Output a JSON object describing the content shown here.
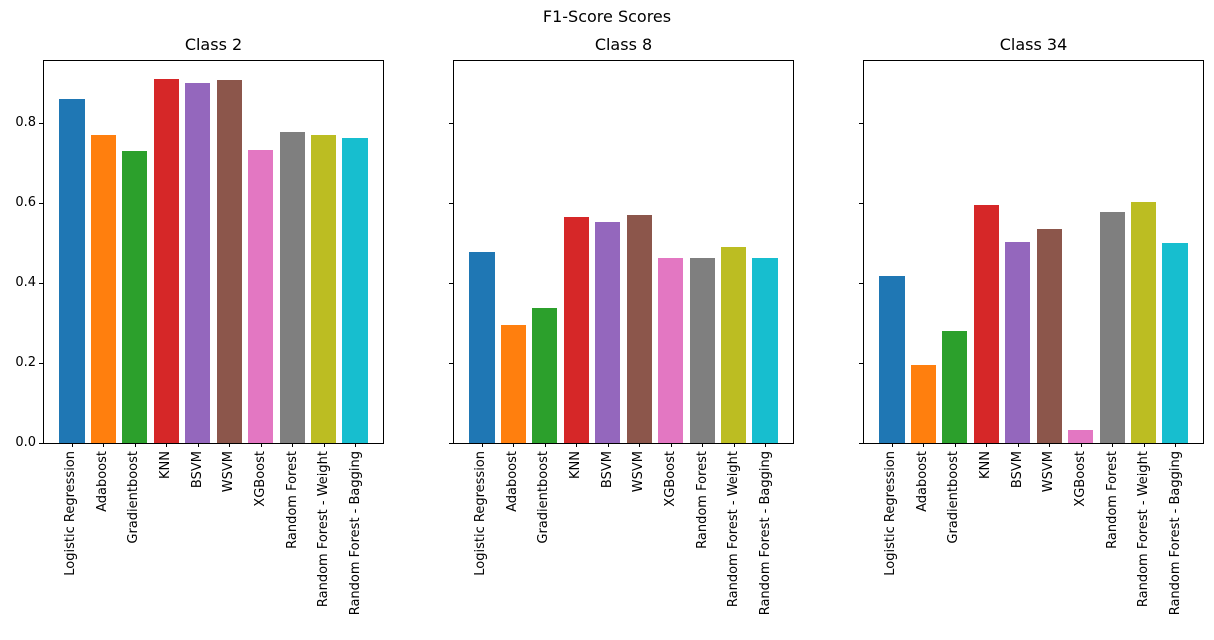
{
  "chart_data": {
    "type": "bar",
    "suptitle": "F1-Score Scores",
    "categories": [
      "Logistic Regression",
      "Adaboost",
      "Gradientboost",
      "KNN",
      "BSVM",
      "WSVM",
      "XGBoost",
      "Random Forest",
      "Random Forest - Weight",
      "Random Forest - Bagging"
    ],
    "bar_colors": [
      "#1f77b4",
      "#ff7f0e",
      "#2ca02c",
      "#d62728",
      "#9467bd",
      "#8c564b",
      "#e377c2",
      "#7f7f7f",
      "#bcbd22",
      "#17becf"
    ],
    "ylabel": "",
    "xlabel": "",
    "yticks": [
      0.0,
      0.2,
      0.4,
      0.6,
      0.8
    ],
    "ylim": [
      0,
      0.9555
    ],
    "grid": false,
    "legend": false,
    "x_tick_rotation": 90,
    "shared_y_axis": true,
    "subplots": [
      {
        "title": "Class 2",
        "values": [
          0.86,
          0.77,
          0.731,
          0.91,
          0.9,
          0.907,
          0.733,
          0.778,
          0.771,
          0.764
        ]
      },
      {
        "title": "Class 8",
        "values": [
          0.478,
          0.295,
          0.338,
          0.565,
          0.552,
          0.57,
          0.462,
          0.462,
          0.491,
          0.462
        ]
      },
      {
        "title": "Class 34",
        "values": [
          0.418,
          0.196,
          0.28,
          0.595,
          0.504,
          0.535,
          0.033,
          0.578,
          0.604,
          0.501
        ]
      }
    ]
  }
}
